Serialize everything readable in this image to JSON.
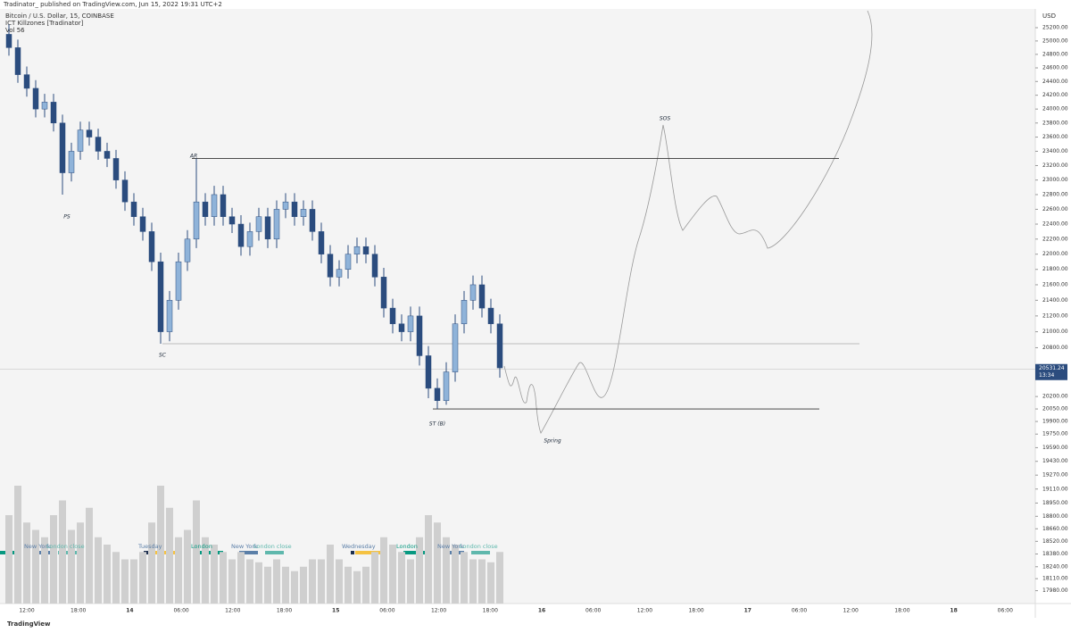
{
  "header": {
    "published": "Tradinator_  published on TradingView.com, Jun 15, 2022 19:31 UTC+2",
    "footer": "TradingView"
  },
  "chart_data": {
    "type": "candlestick",
    "title": "Bitcoin / U.S. Dollar, 15, COINBASE",
    "indicator": "ICT Killzones [Tradinator]",
    "volume_label": "Vol  56",
    "currency": "USD",
    "log_scale": true,
    "up_color": "#8fb3d9",
    "down_color": "#2b4c7e",
    "volume_color": "#cfcfcf",
    "ylim": [
      17842,
      25485
    ],
    "yticks": [
      {
        "value": 25200,
        "label": "25200.00"
      },
      {
        "value": 25000,
        "label": "25000.00"
      },
      {
        "value": 24800,
        "label": "24800.00"
      },
      {
        "value": 24600,
        "label": "24600.00"
      },
      {
        "value": 24400,
        "label": "24400.00"
      },
      {
        "value": 24200,
        "label": "24200.00"
      },
      {
        "value": 24000,
        "label": "24000.00"
      },
      {
        "value": 23800,
        "label": "23800.00"
      },
      {
        "value": 23600,
        "label": "23600.00"
      },
      {
        "value": 23400,
        "label": "23400.00"
      },
      {
        "value": 23200,
        "label": "23200.00"
      },
      {
        "value": 23000,
        "label": "23000.00"
      },
      {
        "value": 22800,
        "label": "22800.00"
      },
      {
        "value": 22600,
        "label": "22600.00"
      },
      {
        "value": 22400,
        "label": "22400.00"
      },
      {
        "value": 22200,
        "label": "22200.00"
      },
      {
        "value": 22000,
        "label": "22000.00"
      },
      {
        "value": 21800,
        "label": "21800.00"
      },
      {
        "value": 21600,
        "label": "21600.00"
      },
      {
        "value": 21400,
        "label": "21400.00"
      },
      {
        "value": 21200,
        "label": "21200.00"
      },
      {
        "value": 21000,
        "label": "21000.00"
      },
      {
        "value": 20800,
        "label": "20800.00"
      },
      {
        "value": 20200,
        "label": "20200.00"
      },
      {
        "value": 20050,
        "label": "20050.00"
      },
      {
        "value": 19900,
        "label": "19900.00"
      },
      {
        "value": 19750,
        "label": "19750.00"
      },
      {
        "value": 19590,
        "label": "19590.00"
      },
      {
        "value": 19430,
        "label": "19430.00"
      },
      {
        "value": 19270,
        "label": "19270.00"
      },
      {
        "value": 19110,
        "label": "19110.00"
      },
      {
        "value": 18950,
        "label": "18950.00"
      },
      {
        "value": 18800,
        "label": "18800.00"
      },
      {
        "value": 18660,
        "label": "18660.00"
      },
      {
        "value": 18520,
        "label": "18520.00"
      },
      {
        "value": 18380,
        "label": "18380.00"
      },
      {
        "value": 18240,
        "label": "18240.00"
      },
      {
        "value": 18110,
        "label": "18110.00"
      },
      {
        "value": 17980,
        "label": "17980.00"
      }
    ],
    "xticks": [
      "12:00",
      "18:00",
      "14",
      "06:00",
      "12:00",
      "18:00",
      "15",
      "06:00",
      "12:00",
      "18:00",
      "16",
      "06:00",
      "12:00",
      "18:00",
      "17",
      "06:00",
      "12:00",
      "18:00",
      "18",
      "06:00"
    ],
    "open": [
      25100,
      24900,
      24500,
      24300,
      24000,
      24100,
      23800,
      23100,
      23400,
      23700,
      23600,
      23400,
      23300,
      23000,
      22700,
      22500,
      22300,
      21900,
      21000,
      21400,
      21900,
      22200,
      22700,
      22500,
      22800,
      22500,
      22400,
      22100,
      22300,
      22500,
      22200,
      22600,
      22700,
      22500,
      22600,
      22300,
      22000,
      21700,
      21800,
      22000,
      22100,
      22000,
      21700,
      21300,
      21100,
      21000,
      21200,
      20700,
      20300,
      20150,
      20500,
      21100,
      21400,
      21600,
      21300,
      21100
    ],
    "high": [
      25250,
      25020,
      24620,
      24420,
      24220,
      24220,
      23920,
      23520,
      23820,
      23820,
      23720,
      23520,
      23420,
      23120,
      22820,
      22620,
      22420,
      22020,
      21520,
      22020,
      22320,
      23300,
      22820,
      22920,
      22920,
      22620,
      22520,
      22420,
      22620,
      22620,
      22720,
      22820,
      22820,
      22720,
      22720,
      22420,
      22120,
      21920,
      22120,
      22220,
      22220,
      22120,
      21820,
      21420,
      21220,
      21320,
      21320,
      20820,
      20420,
      20620,
      21220,
      21520,
      21720,
      21720,
      21420,
      21220
    ],
    "low": [
      24780,
      24380,
      24180,
      23880,
      23880,
      23680,
      22800,
      22980,
      23280,
      23480,
      23280,
      23180,
      22880,
      22580,
      22380,
      22180,
      21780,
      20850,
      20880,
      21280,
      21780,
      22080,
      22380,
      22380,
      22380,
      22280,
      21980,
      21980,
      22180,
      22080,
      22080,
      22480,
      22380,
      22380,
      22180,
      21880,
      21580,
      21580,
      21680,
      21880,
      21880,
      21580,
      21180,
      20980,
      20880,
      20880,
      20580,
      20180,
      20050,
      20100,
      20380,
      20980,
      21280,
      21180,
      20980,
      20430
    ],
    "close": [
      24900,
      24500,
      24300,
      24000,
      24100,
      23800,
      23100,
      23400,
      23700,
      23600,
      23400,
      23300,
      23000,
      22700,
      22500,
      22300,
      21900,
      21000,
      21400,
      21900,
      22200,
      22700,
      22500,
      22800,
      22500,
      22400,
      22100,
      22300,
      22500,
      22200,
      22600,
      22700,
      22500,
      22600,
      22300,
      22000,
      21700,
      21800,
      22000,
      22100,
      22000,
      21700,
      21300,
      21100,
      21000,
      21200,
      20700,
      20300,
      20150,
      20500,
      21100,
      21400,
      21600,
      21300,
      21100,
      20550
    ],
    "volume": [
      60,
      80,
      55,
      50,
      45,
      60,
      70,
      50,
      55,
      65,
      45,
      40,
      35,
      30,
      30,
      35,
      55,
      80,
      65,
      45,
      50,
      70,
      45,
      40,
      35,
      30,
      35,
      30,
      28,
      25,
      30,
      25,
      22,
      25,
      30,
      30,
      40,
      30,
      25,
      22,
      25,
      35,
      45,
      40,
      35,
      30,
      45,
      60,
      55,
      45,
      40,
      35,
      30,
      30,
      28,
      35
    ],
    "last_price": 20531.24,
    "countdown": "13:34",
    "levels": [
      23300,
      20850,
      20050
    ],
    "annotations": [
      "PS",
      "SC",
      "AR",
      "ST (B)",
      "Spring",
      "SOS"
    ],
    "sessions": [
      "New York",
      "London close",
      "Tuesday",
      "London",
      "New York",
      "London close",
      "Wednesday",
      "London",
      "New York",
      "London close"
    ]
  }
}
